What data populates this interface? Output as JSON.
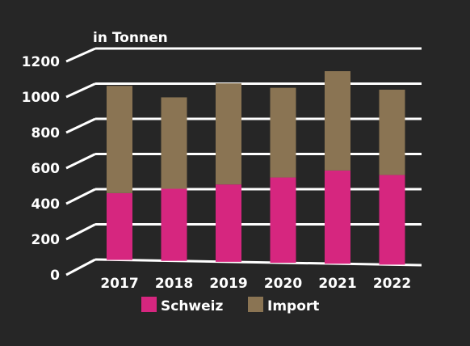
{
  "chart_data": {
    "type": "bar",
    "stacked": true,
    "unit_label": "in Tonnen",
    "categories": [
      "2017",
      "2018",
      "2019",
      "2020",
      "2021",
      "2022"
    ],
    "series": [
      {
        "name": "Schweiz",
        "color": "#d6267f",
        "values": [
          380,
          410,
          440,
          485,
          530,
          510
        ]
      },
      {
        "name": "Import",
        "color": "#8a7453",
        "values": [
          610,
          520,
          575,
          510,
          565,
          485
        ]
      }
    ],
    "yticks": [
      0,
      200,
      400,
      600,
      800,
      1000,
      1200
    ],
    "ylim": [
      0,
      1200
    ],
    "grid": true,
    "legend_position": "bottom"
  }
}
